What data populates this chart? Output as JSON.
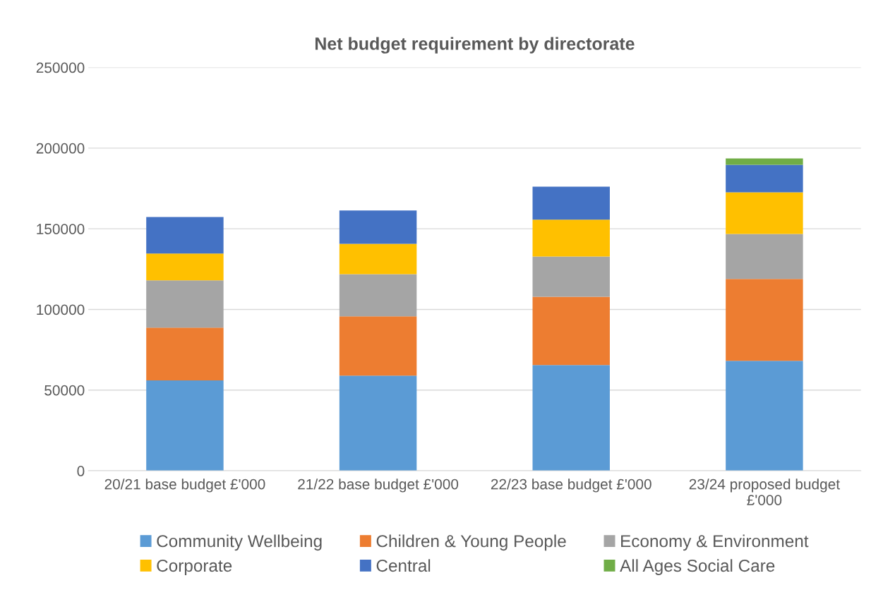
{
  "chart_data": {
    "type": "bar",
    "title": "Net budget requirement by directorate",
    "stacked": true,
    "categories": [
      "20/21 base budget £'000",
      "21/22 base budget £'000",
      "22/23 base budget £'000",
      "23/24 proposed budget\n£'000"
    ],
    "series": [
      {
        "name": "Community Wellbeing",
        "color": "#5b9bd5",
        "values": [
          56000,
          59000,
          65500,
          68200
        ]
      },
      {
        "name": "Children & Young People",
        "color": "#ed7d31",
        "values": [
          32700,
          36700,
          42400,
          50700
        ]
      },
      {
        "name": "Economy & Environment",
        "color": "#a5a5a5",
        "values": [
          29300,
          26200,
          24900,
          27900
        ]
      },
      {
        "name": "Corporate",
        "color": "#ffc000",
        "values": [
          16600,
          18800,
          22800,
          25800
        ]
      },
      {
        "name": "Central",
        "color": "#4472c4",
        "values": [
          22700,
          20600,
          20500,
          17100
        ]
      },
      {
        "name": "All Ages Social Care",
        "color": "#70ad47",
        "values": [
          null,
          null,
          null,
          3900
        ]
      }
    ],
    "ylim": [
      0,
      250000
    ],
    "yticks": [
      0,
      50000,
      100000,
      150000,
      200000,
      250000
    ],
    "grid": "y",
    "legend": "bottom"
  }
}
